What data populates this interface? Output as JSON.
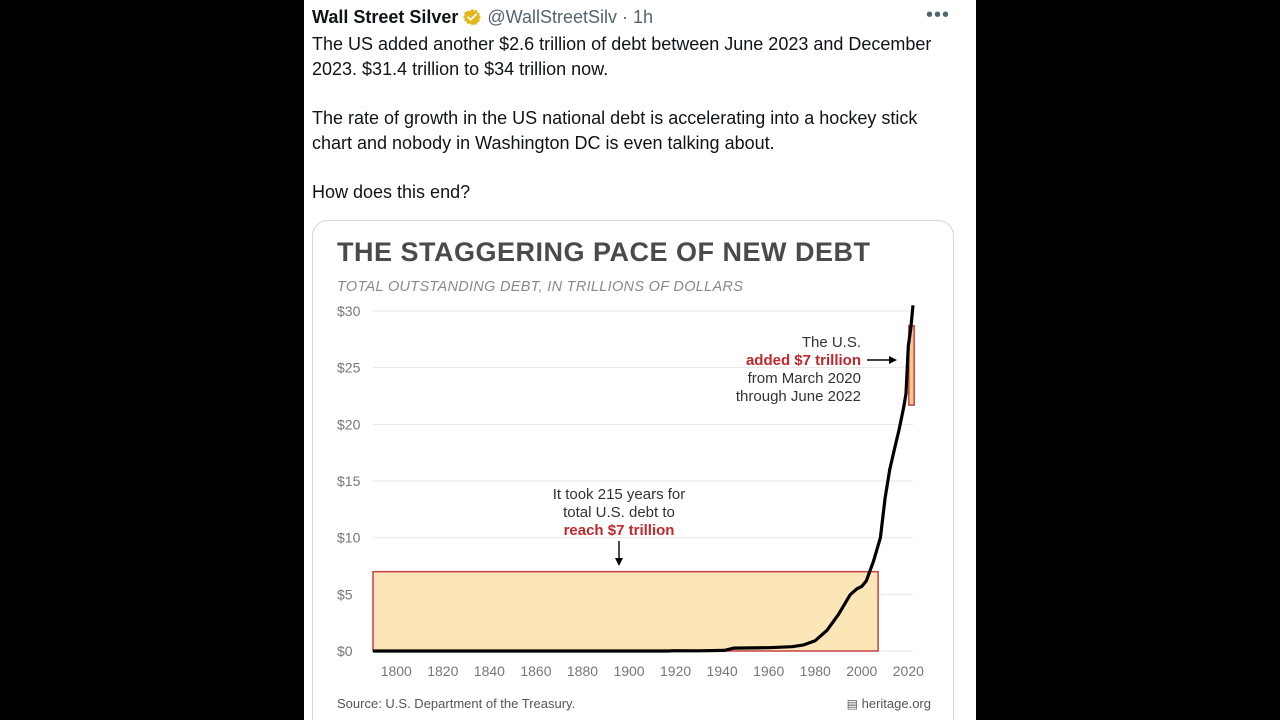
{
  "tweet": {
    "author": "Wall Street Silver",
    "handle": "@WallStreetSilv",
    "separator": "·",
    "time": "1h",
    "more": "•••",
    "paragraphs": [
      "The US added another $2.6 trillion of debt between June 2023 and December 2023. $31.4 trillion to $34 trillion now.",
      "The rate of growth in the US national debt is accelerating into a hockey stick chart and nobody in Washington DC is even talking about.",
      "How does this end?"
    ]
  },
  "chart_data": {
    "type": "line",
    "title": "THE STAGGERING PACE OF NEW DEBT",
    "subtitle": "TOTAL OUTSTANDING DEBT, IN TRILLIONS OF DOLLARS",
    "xlabel": "",
    "ylabel": "",
    "xlim": [
      1790,
      2022
    ],
    "ylim": [
      0,
      30
    ],
    "x_ticks": [
      1800,
      1820,
      1840,
      1860,
      1880,
      1900,
      1920,
      1940,
      1960,
      1980,
      2000,
      2020
    ],
    "x_tick_labels": [
      "1800",
      "1820",
      "1840",
      "1860",
      "1880",
      "1900",
      "1920",
      "1940",
      "1960",
      "1980",
      "2000",
      "2020"
    ],
    "y_ticks": [
      0,
      5,
      10,
      15,
      20,
      25,
      30
    ],
    "y_tick_labels": [
      "$0",
      "$5",
      "$10",
      "$15",
      "$20",
      "$25",
      "$30"
    ],
    "grid": true,
    "series": [
      {
        "x": [
          1790,
          1860,
          1917,
          1919,
          1930,
          1941,
          1945,
          1960,
          1970,
          1975,
          1980,
          1985,
          1990,
          1995,
          1998,
          2000,
          2002,
          2005,
          2008,
          2010,
          2012,
          2014,
          2016,
          2018,
          2019,
          2020,
          2021,
          2022
        ],
        "values": [
          0,
          0,
          0,
          0.03,
          0.02,
          0.05,
          0.26,
          0.29,
          0.38,
          0.54,
          0.91,
          1.82,
          3.23,
          4.97,
          5.5,
          5.7,
          6.2,
          7.9,
          10.0,
          13.5,
          16.0,
          17.8,
          19.5,
          21.5,
          22.7,
          26.9,
          28.4,
          30.5
        ],
        "color": "#000000"
      }
    ],
    "highlights": [
      {
        "x0": 1790,
        "x1": 2007,
        "y0": 0,
        "y1": 7,
        "fill": "#fce6b8",
        "stroke": "#c94040"
      },
      {
        "x0": 2020.2,
        "x1": 2022.5,
        "y0": 21.7,
        "y1": 28.7,
        "fill": "#f5c98a",
        "stroke": "#c94040"
      }
    ],
    "annotations": [
      {
        "lines": [
          "It took 215 years for",
          "total U.S. debt to"
        ],
        "emphasis": "reach $7 trillion"
      },
      {
        "lines_before": [
          "The U.S."
        ],
        "emphasis": "added $7 trillion",
        "lines_after": [
          "from March 2020",
          "through June 2022"
        ]
      }
    ],
    "source": "Source: U.S. Department of the Treasury.",
    "brand": "heritage.org",
    "colors": {
      "text": "#4a4a4a",
      "accent": "#c0282d",
      "grid": "#e6e6e6"
    }
  }
}
